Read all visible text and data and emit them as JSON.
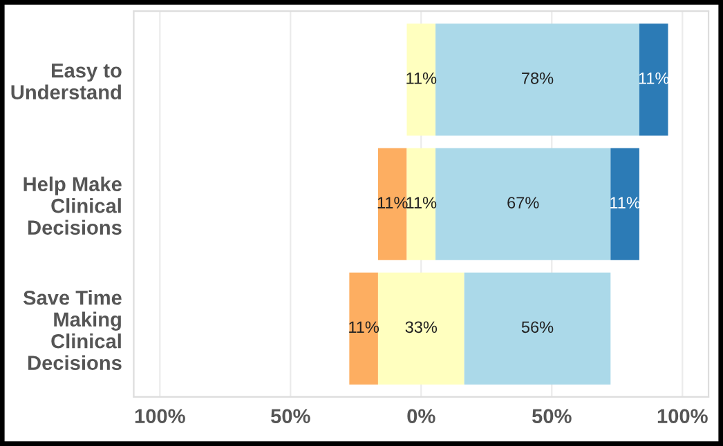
{
  "chart_data": {
    "type": "bar",
    "orientation": "horizontal",
    "categories": [
      "Easy to\nUnderstand",
      "Help Make\nClinical\nDecisions",
      "Save Time\nMaking\nClinical\nDecisions"
    ],
    "series": [
      {
        "color": "#fdae61",
        "values": [
          null,
          11,
          11
        ],
        "base": [
          null,
          -16.5,
          -27.5
        ],
        "value_labels": [
          null,
          "11%",
          "11%"
        ]
      },
      {
        "color": "#ffffbf",
        "values": [
          11,
          11,
          33
        ],
        "base": [
          -5.5,
          -5.5,
          -16.5
        ],
        "value_labels": [
          "11%",
          "11%",
          "33%"
        ]
      },
      {
        "color": "#abd9e9",
        "values": [
          78,
          67,
          56
        ],
        "base": [
          5.5,
          5.5,
          16.5
        ],
        "value_labels": [
          "78%",
          "67%",
          "56%"
        ]
      },
      {
        "color": "#2c7bb6",
        "values": [
          11,
          11,
          null
        ],
        "base": [
          83.5,
          72.5,
          null
        ],
        "value_labels": [
          "11%",
          "11%",
          null
        ]
      }
    ],
    "xlim": [
      -110,
      110
    ],
    "xticks": [
      {
        "value": -100,
        "label": "100%"
      },
      {
        "value": -50,
        "label": "50%"
      },
      {
        "value": 0,
        "label": "0%"
      },
      {
        "value": 50,
        "label": "50%"
      },
      {
        "value": 100,
        "label": "100%"
      }
    ],
    "grid": "x",
    "legend": false
  }
}
